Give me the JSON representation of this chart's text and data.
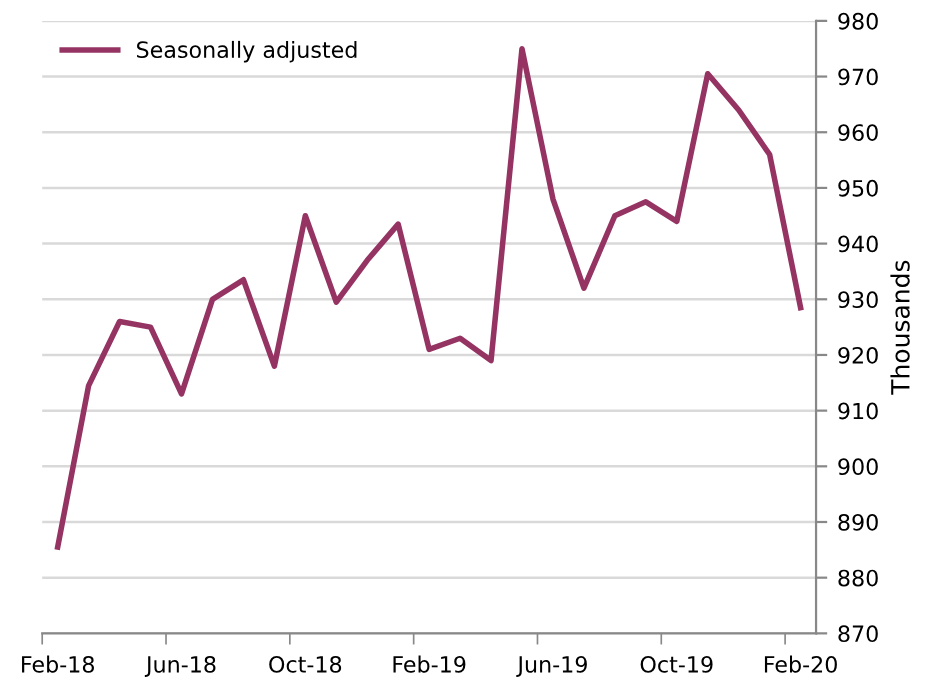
{
  "chart_data": {
    "type": "line",
    "ylabel": "Thousands",
    "categories": [
      "Feb-18",
      null,
      null,
      null,
      "Jun-18",
      null,
      null,
      null,
      "Oct-18",
      null,
      null,
      null,
      "Feb-19",
      null,
      null,
      null,
      "Jun-19",
      null,
      null,
      null,
      "Oct-19",
      null,
      null,
      null,
      "Feb-20"
    ],
    "series": [
      {
        "name": "Seasonally adjusted",
        "color": "#953463",
        "values": [
          885.5,
          914.5,
          926,
          925,
          913,
          930,
          933.5,
          918,
          945,
          929.5,
          937,
          943.5,
          921,
          923,
          919,
          975,
          948,
          932,
          945,
          947.5,
          944,
          970.5,
          964,
          956,
          928.5
        ]
      }
    ],
    "ylim": [
      870,
      980
    ],
    "yticks": [
      870,
      880,
      890,
      900,
      910,
      920,
      930,
      940,
      950,
      960,
      970,
      980
    ],
    "grid": "y",
    "legend": "top left",
    "marker": "none",
    "line_style": "solid"
  }
}
